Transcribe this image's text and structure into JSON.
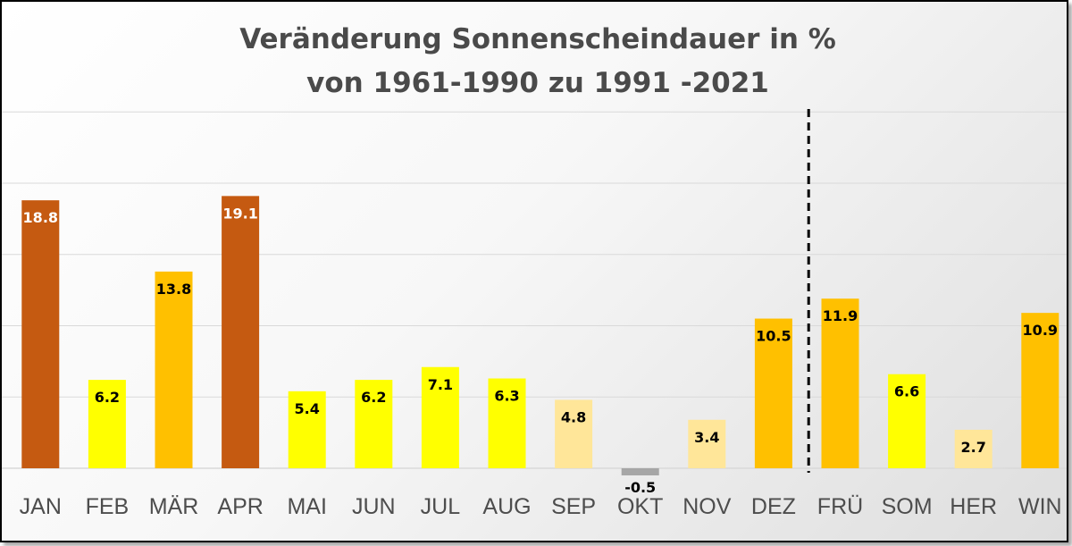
{
  "chart_data": {
    "type": "bar",
    "title": [
      "Veränderung Sonnenscheindauer in %",
      "von 1961-1990 zu 1991 -2021"
    ],
    "categories": [
      "JAN",
      "FEB",
      "MÄR",
      "APR",
      "MAI",
      "JUN",
      "JUL",
      "AUG",
      "SEP",
      "OKT",
      "NOV",
      "DEZ",
      "FRÜ",
      "SOM",
      "HER",
      "WIN"
    ],
    "values": [
      18.8,
      6.2,
      13.8,
      19.1,
      5.4,
      6.2,
      7.1,
      6.3,
      4.8,
      -0.5,
      3.4,
      10.5,
      11.9,
      6.6,
      2.7,
      10.9
    ],
    "labels": [
      "18.8",
      "6.2",
      "13.8",
      "19.1",
      "5.4",
      "6.2",
      "7.1",
      "6.3",
      "4.8",
      "-0.5",
      "3.4",
      "10.5",
      "11.9",
      "6.6",
      "2.7",
      "10.9"
    ],
    "bar_colors": [
      "#c55a11",
      "#ffff00",
      "#ffc000",
      "#c55a11",
      "#ffff00",
      "#ffff00",
      "#ffff00",
      "#ffff00",
      "#ffe699",
      "#a6a6a6",
      "#ffe699",
      "#ffc000",
      "#ffc000",
      "#ffff00",
      "#ffe699",
      "#ffc000"
    ],
    "label_colors": [
      "#ffffff",
      "#000000",
      "#000000",
      "#ffffff",
      "#000000",
      "#000000",
      "#000000",
      "#000000",
      "#000000",
      "#000000",
      "#000000",
      "#000000",
      "#000000",
      "#000000",
      "#000000",
      "#000000"
    ],
    "ylim": [
      -1,
      25
    ],
    "gridlines": [
      5,
      10,
      15,
      20,
      25
    ],
    "grid": true,
    "separator_after_category": "DEZ",
    "colors": {
      "axis": "#d9d9d9",
      "grid": "#d9d9d9",
      "separator": "#000000"
    }
  }
}
